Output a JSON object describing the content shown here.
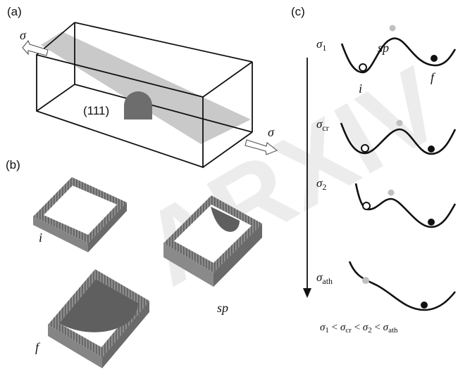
{
  "watermark": "ARXIV",
  "panel_a": {
    "label": "(a)",
    "plane_label": "(111)",
    "stress_symbol": "σ"
  },
  "panel_b": {
    "label": "(b)",
    "state_initial": "i",
    "state_saddle": "sp",
    "state_final": "f"
  },
  "panel_c": {
    "label": "(c)",
    "state_saddle": "sp",
    "state_initial": "i",
    "state_final": "f",
    "stress_levels": [
      {
        "symbol": "σ",
        "sub": "1"
      },
      {
        "symbol": "σ",
        "sub": "cr"
      },
      {
        "symbol": "σ",
        "sub": "2"
      },
      {
        "symbol": "σ",
        "sub": "ath"
      }
    ],
    "inequality": [
      {
        "symbol": "σ",
        "sub": "1"
      },
      {
        "op": " < "
      },
      {
        "symbol": "σ",
        "sub": "cr"
      },
      {
        "op": " < "
      },
      {
        "symbol": "σ",
        "sub": "2"
      },
      {
        "op": " < "
      },
      {
        "symbol": "σ",
        "sub": "ath"
      }
    ]
  }
}
